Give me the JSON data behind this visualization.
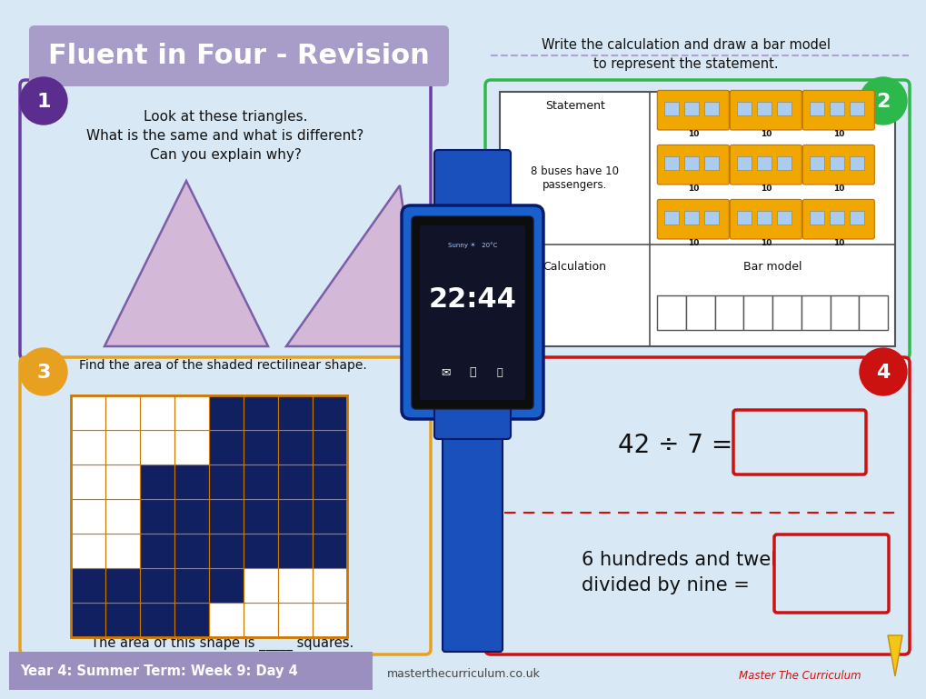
{
  "bg_color": "#d8e8f4",
  "title": "Fluent in Four - Revision",
  "title_bg": "#a89cc8",
  "title_color": "#ffffff",
  "footer_text": "Year 4: Summer Term: Week 9: Day 4",
  "footer_bg": "#9b8fc0",
  "website": "masterthecurriculum.co.uk",
  "watermark": "Master The Curriculum",
  "q1_num_color": "#5b2d8e",
  "q1_border_color": "#6a3aaa",
  "q2_num_color": "#2db84b",
  "q2_border_color": "#2db84b",
  "q2_text": "Write the calculation and draw a bar model\nto represent the statement.",
  "q3_num_color": "#e8a020",
  "q3_border_color": "#e8a020",
  "q3_text": "Find the area of the shaded rectilinear shape.",
  "q3_footer": "The area of this shape is _____ squares.",
  "q4_num_color": "#cc1111",
  "q4_border_color": "#cc1111",
  "q4_text1": "42 ÷ 7 =",
  "q4_text2": "6 hundreds and twelve\ndivided by nine =",
  "tri_fill": "#d4b8d8",
  "tri_stroke": "#7b5ea7",
  "watch_body": "#1a60cc",
  "watch_screen_bg": "#0a1a3a",
  "watch_strap": "#1a50bb",
  "dark_grid": "#102060"
}
